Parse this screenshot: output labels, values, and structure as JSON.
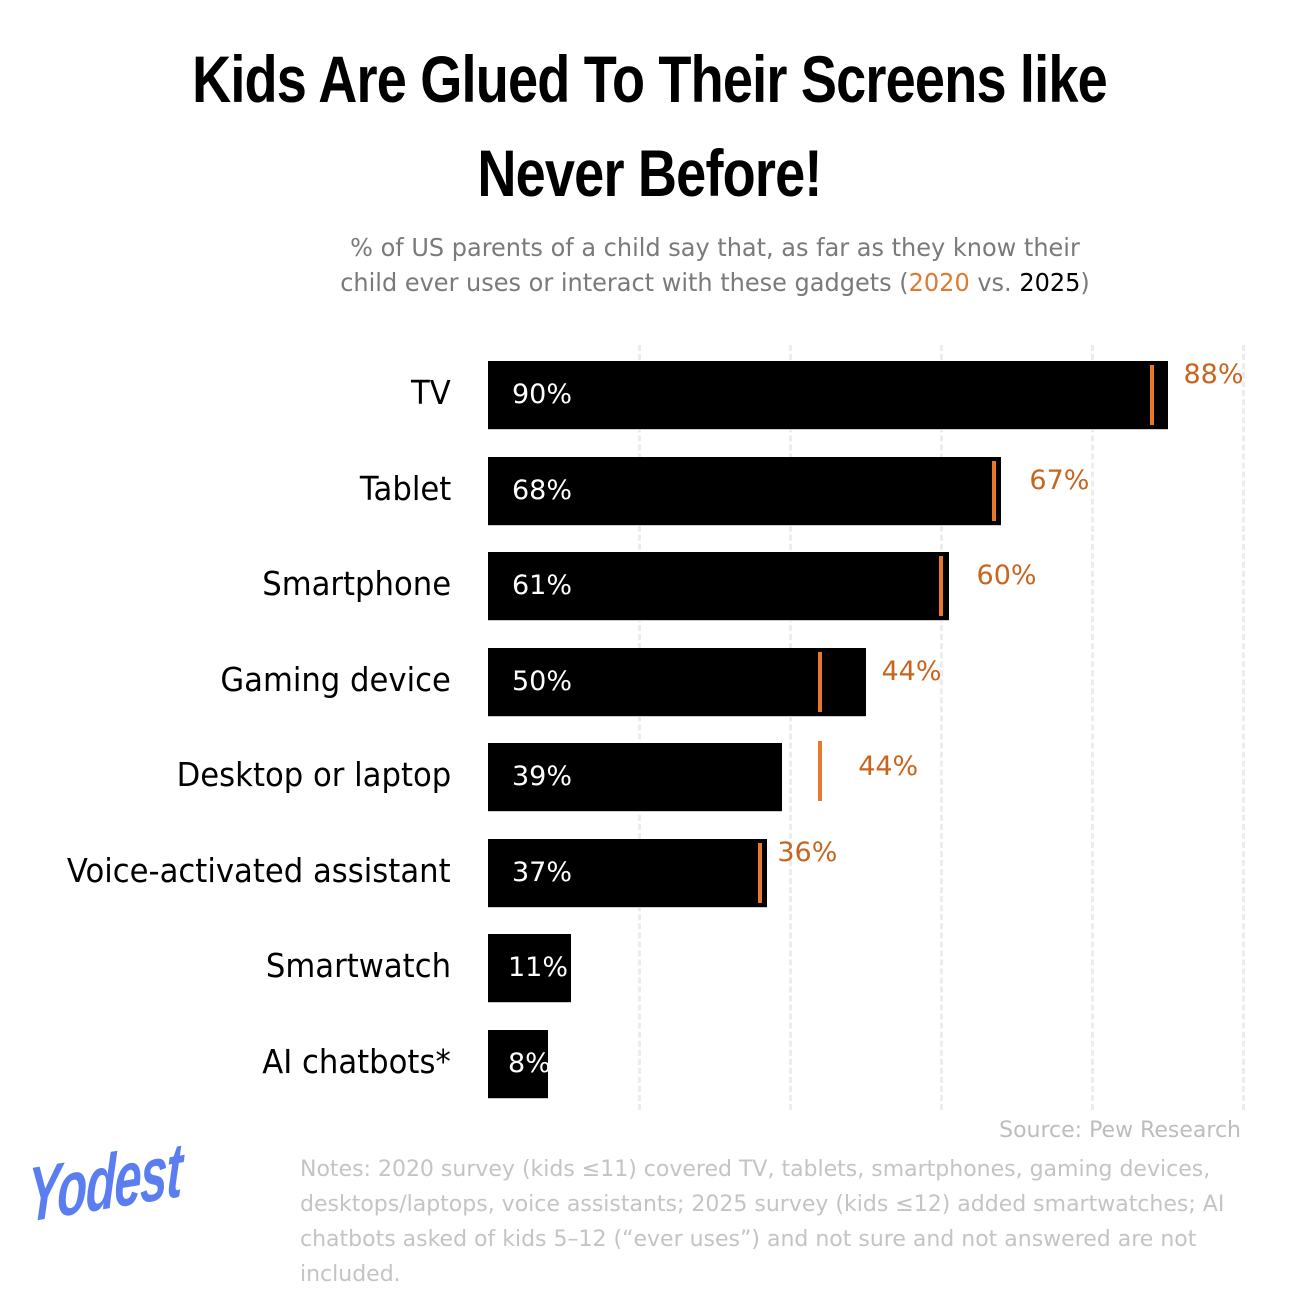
{
  "title": {
    "line1": "Kids Are Glued To Their Screens like",
    "line2": "Never Before!"
  },
  "subtitle": {
    "line1": "% of US parents of a child say that, as far as they know their",
    "line2_prefix": "child ever uses or interact with these gadgets (",
    "year_2020": "2020",
    "vs": " vs. ",
    "year_2025": "2025",
    "close": ")"
  },
  "colors": {
    "bar_2025": "#000000",
    "marker_2020": "#e8792c",
    "label_2020": "#c8651e",
    "logo": "#5a7ef0"
  },
  "chart_data": {
    "type": "bar",
    "orientation": "horizontal",
    "title": "Kids Are Glued To Their Screens like Never Before!",
    "subtitle": "% of US parents of a child say that, as far as they know their child ever uses or interact with these gadgets (2020 vs. 2025)",
    "categories": [
      "TV",
      "Tablet",
      "Smartphone",
      "Gaming device",
      "Desktop or laptop",
      "Voice-activated assistant",
      "Smartwatch",
      "AI chatbots*"
    ],
    "series": [
      {
        "name": "2025",
        "style": "bar",
        "color": "#000000",
        "values": [
          90,
          68,
          61,
          50,
          39,
          37,
          11,
          8
        ]
      },
      {
        "name": "2020",
        "style": "marker",
        "color": "#e8792c",
        "values": [
          88,
          67,
          60,
          44,
          44,
          36,
          null,
          null
        ]
      }
    ],
    "xlim": [
      0,
      100
    ],
    "grid": {
      "x": true,
      "style": "dashed",
      "ticks": [
        20,
        40,
        60,
        80,
        100
      ]
    },
    "xlabel": "",
    "ylabel": ""
  },
  "rows": [
    {
      "label": "TV",
      "v2025": 90,
      "v2025_text": "90%",
      "v2020": 88,
      "v2020_text": "88%"
    },
    {
      "label": "Tablet",
      "v2025": 68,
      "v2025_text": "68%",
      "v2020": 67,
      "v2020_text": "67%"
    },
    {
      "label": "Smartphone",
      "v2025": 61,
      "v2025_text": "61%",
      "v2020": 60,
      "v2020_text": "60%"
    },
    {
      "label": "Gaming device",
      "v2025": 50,
      "v2025_text": "50%",
      "v2020": 44,
      "v2020_text": "44%"
    },
    {
      "label": "Desktop or laptop",
      "v2025": 39,
      "v2025_text": "39%",
      "v2020": 44,
      "v2020_text": "44%"
    },
    {
      "label": "Voice-activated assistant",
      "v2025": 37,
      "v2025_text": "37%",
      "v2020": 36,
      "v2020_text": "36%"
    },
    {
      "label": "Smartwatch",
      "v2025": 11,
      "v2025_text": "11%",
      "v2020": null,
      "v2020_text": null
    },
    {
      "label": "AI chatbots*",
      "v2025": 8,
      "v2025_text": "8%",
      "v2020": null,
      "v2020_text": null
    }
  ],
  "footer": {
    "source": "Source: Pew Research",
    "notes": "Notes: 2020 survey (kids ≤11) covered TV, tablets, smartphones, gaming devices, desktops/laptops, voice assistants; 2025 survey (kids ≤12) added smartwatches; AI chatbots asked of kids 5–12 (“ever uses”) and not sure and not answered are not included.",
    "logo": "Yodest"
  }
}
